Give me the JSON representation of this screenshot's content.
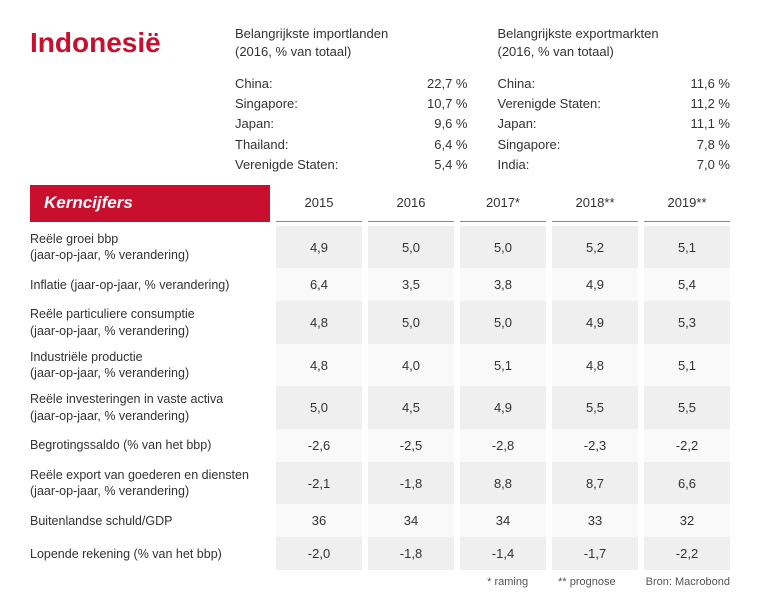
{
  "title": "Indonesië",
  "imports": {
    "heading_line1": "Belangrijkste importlanden",
    "heading_line2": "(2016, % van totaal)",
    "items": [
      {
        "country": "China:",
        "value": "22,7 %"
      },
      {
        "country": "Singapore:",
        "value": "10,7 %"
      },
      {
        "country": "Japan:",
        "value": "9,6 %"
      },
      {
        "country": "Thailand:",
        "value": "6,4 %"
      },
      {
        "country": "Verenigde Staten:",
        "value": "5,4 %"
      }
    ]
  },
  "exports": {
    "heading_line1": "Belangrijkste exportmarkten",
    "heading_line2": "(2016, % van totaal)",
    "items": [
      {
        "country": "China:",
        "value": "11,6 %"
      },
      {
        "country": "Verenigde Staten:",
        "value": "11,2 %"
      },
      {
        "country": "Japan:",
        "value": "11,1 %"
      },
      {
        "country": "Singapore:",
        "value": "7,8 %"
      },
      {
        "country": "India:",
        "value": "7,0 %"
      }
    ]
  },
  "table": {
    "badge": "Kerncijfers",
    "years": [
      "2015",
      "2016",
      "2017*",
      "2018**",
      "2019**"
    ],
    "rows": [
      {
        "label1": "Reële groei bbp",
        "label2": "(jaar-op-jaar, % verandering)",
        "values": [
          "4,9",
          "5,0",
          "5,0",
          "5,2",
          "5,1"
        ]
      },
      {
        "label1": "Inflatie (jaar-op-jaar, % verandering)",
        "label2": "",
        "values": [
          "6,4",
          "3,5",
          "3,8",
          "4,9",
          "5,4"
        ]
      },
      {
        "label1": "Reële particuliere consumptie",
        "label2": "(jaar-op-jaar, % verandering)",
        "values": [
          "4,8",
          "5,0",
          "5,0",
          "4,9",
          "5,3"
        ]
      },
      {
        "label1": "Industriële productie",
        "label2": "(jaar-op-jaar, % verandering)",
        "values": [
          "4,8",
          "4,0",
          "5,1",
          "4,8",
          "5,1"
        ]
      },
      {
        "label1": "Reële investeringen in vaste activa",
        "label2": "(jaar-op-jaar, % verandering)",
        "values": [
          "5,0",
          "4,5",
          "4,9",
          "5,5",
          "5,5"
        ]
      },
      {
        "label1": "Begrotingssaldo (% van het bbp)",
        "label2": "",
        "values": [
          "-2,6",
          "-2,5",
          "-2,8",
          "-2,3",
          "-2,2"
        ]
      },
      {
        "label1": "Reële export van goederen en diensten",
        "label2": "(jaar-op-jaar, % verandering)",
        "values": [
          "-2,1",
          "-1,8",
          "8,8",
          "8,7",
          "6,6"
        ]
      },
      {
        "label1": "Buitenlandse schuld/GDP",
        "label2": "",
        "values": [
          "36",
          "34",
          "34",
          "33",
          "32"
        ]
      },
      {
        "label1": "Lopende rekening (% van het bbp)",
        "label2": "",
        "values": [
          "-2,0",
          "-1,8",
          "-1,4",
          "-1,7",
          "-2,2"
        ]
      }
    ]
  },
  "footnote": {
    "estimate": "* raming",
    "forecast": "** prognose",
    "source": "Bron: Macrobond"
  },
  "colors": {
    "accent": "#c8102e",
    "row_even": "#efefef",
    "row_odd": "#f9f9f9",
    "text": "#333333",
    "border": "#888888"
  }
}
